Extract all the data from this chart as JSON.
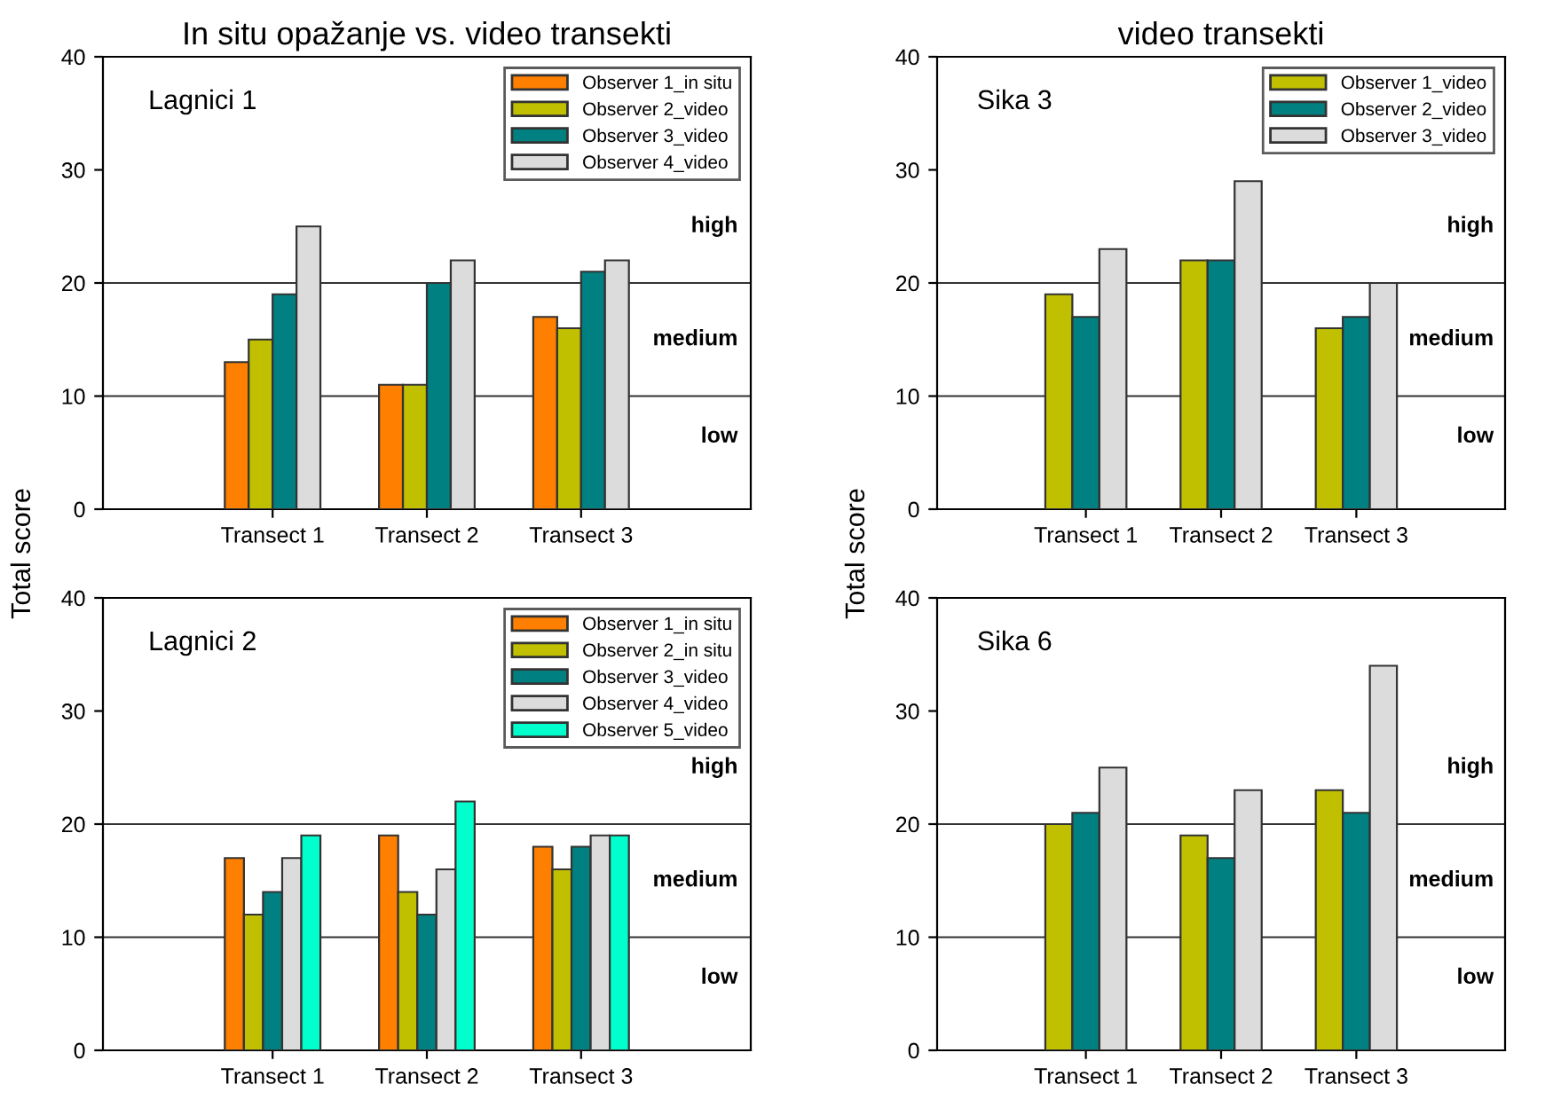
{
  "chart_data": [
    {
      "type": "bar",
      "title": "In situ opažanje vs. video transekti",
      "subtitle": "Lagnici 1",
      "ylabel": "Total score",
      "categories": [
        "Transect 1",
        "Transect 2",
        "Transect 3"
      ],
      "series": [
        {
          "name": "Observer 1_in situ",
          "color": "#ff7f00",
          "values": [
            13,
            11,
            17
          ]
        },
        {
          "name": "Observer 2_video",
          "color": "#c0c000",
          "values": [
            15,
            11,
            16
          ]
        },
        {
          "name": "Observer 3_video",
          "color": "#008080",
          "values": [
            19,
            20,
            21
          ]
        },
        {
          "name": "Observer 4_video",
          "color": "#dcdcdc",
          "values": [
            25,
            22,
            22
          ]
        }
      ],
      "ylim": [
        0,
        40
      ],
      "yticks": [
        0,
        10,
        20,
        30,
        40
      ],
      "ref_lines": [
        {
          "axis": "y",
          "value": 10,
          "label": null
        },
        {
          "axis": "y",
          "value": 20,
          "label": null
        }
      ],
      "annotations": [
        "high",
        "medium",
        "low"
      ],
      "legend": "top right",
      "grid": false
    },
    {
      "type": "bar",
      "subtitle": "Lagnici 2",
      "categories": [
        "Transect 1",
        "Transect 2",
        "Transect 3"
      ],
      "series": [
        {
          "name": "Observer 1_in situ",
          "color": "#ff7f00",
          "values": [
            17,
            19,
            18
          ]
        },
        {
          "name": "Observer 2_in situ",
          "color": "#c0c000",
          "values": [
            12,
            14,
            16
          ]
        },
        {
          "name": "Observer 3_video",
          "color": "#008080",
          "values": [
            14,
            12,
            18
          ]
        },
        {
          "name": "Observer 4_video",
          "color": "#dcdcdc",
          "values": [
            17,
            16,
            19
          ]
        },
        {
          "name": "Observer 5_video",
          "color": "#00ffcc",
          "values": [
            19,
            22,
            19
          ]
        }
      ],
      "ylim": [
        0,
        40
      ],
      "yticks": [
        0,
        10,
        20,
        30,
        40
      ],
      "ref_lines": [
        {
          "axis": "y",
          "value": 10,
          "label": null
        },
        {
          "axis": "y",
          "value": 20,
          "label": null
        }
      ],
      "annotations": [
        "high",
        "medium",
        "low"
      ],
      "legend": "top right",
      "grid": false
    },
    {
      "type": "bar",
      "title": "video transekti",
      "subtitle": "Sika 3",
      "ylabel": "Total score",
      "categories": [
        "Transect 1",
        "Transect 2",
        "Transect 3"
      ],
      "series": [
        {
          "name": "Observer 1_video",
          "color": "#c0c000",
          "values": [
            19,
            22,
            16
          ]
        },
        {
          "name": "Observer 2_video",
          "color": "#008080",
          "values": [
            17,
            22,
            17
          ]
        },
        {
          "name": "Observer 3_video",
          "color": "#dcdcdc",
          "values": [
            23,
            29,
            20
          ]
        }
      ],
      "ylim": [
        0,
        40
      ],
      "yticks": [
        0,
        10,
        20,
        30,
        40
      ],
      "ref_lines": [
        {
          "axis": "y",
          "value": 10,
          "label": null
        },
        {
          "axis": "y",
          "value": 20,
          "label": null
        }
      ],
      "annotations": [
        "high",
        "medium",
        "low"
      ],
      "legend": "top right",
      "grid": false
    },
    {
      "type": "bar",
      "subtitle": "Sika 6",
      "categories": [
        "Transect 1",
        "Transect 2",
        "Transect 3"
      ],
      "series": [
        {
          "color": "#c0c000",
          "values": [
            20,
            19,
            23
          ]
        },
        {
          "color": "#008080",
          "values": [
            21,
            17,
            21
          ]
        },
        {
          "color": "#dcdcdc",
          "values": [
            25,
            23,
            34
          ]
        }
      ],
      "ylim": [
        0,
        40
      ],
      "yticks": [
        0,
        10,
        20,
        30,
        40
      ],
      "ref_lines": [
        {
          "axis": "y",
          "value": 10,
          "label": null
        },
        {
          "axis": "y",
          "value": 20,
          "label": null
        }
      ],
      "annotations": [
        "high",
        "medium",
        "low"
      ],
      "grid": false
    }
  ]
}
